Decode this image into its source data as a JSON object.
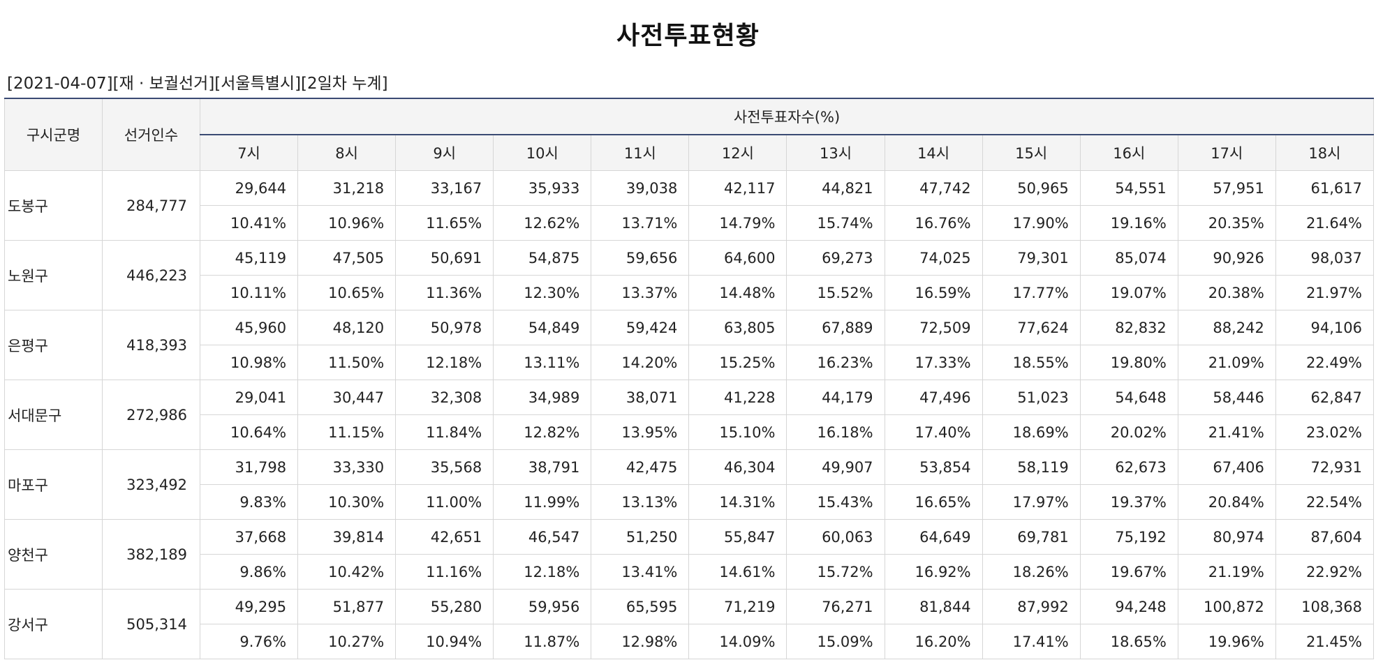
{
  "title": "사전투표현황",
  "subtitle": "[2021-04-07][재 · 보궐선거][서울특별시][2일차 누계]",
  "headers": {
    "district": "구시군명",
    "electors": "선거인수",
    "group": "사전투표자수(%)",
    "hours": [
      "7시",
      "8시",
      "9시",
      "10시",
      "11시",
      "12시",
      "13시",
      "14시",
      "15시",
      "16시",
      "17시",
      "18시"
    ]
  },
  "rows": [
    {
      "name": "도봉구",
      "electors": "284,777",
      "counts": [
        "29,644",
        "31,218",
        "33,167",
        "35,933",
        "39,038",
        "42,117",
        "44,821",
        "47,742",
        "50,965",
        "54,551",
        "57,951",
        "61,617"
      ],
      "rates": [
        "10.41%",
        "10.96%",
        "11.65%",
        "12.62%",
        "13.71%",
        "14.79%",
        "15.74%",
        "16.76%",
        "17.90%",
        "19.16%",
        "20.35%",
        "21.64%"
      ]
    },
    {
      "name": "노원구",
      "electors": "446,223",
      "counts": [
        "45,119",
        "47,505",
        "50,691",
        "54,875",
        "59,656",
        "64,600",
        "69,273",
        "74,025",
        "79,301",
        "85,074",
        "90,926",
        "98,037"
      ],
      "rates": [
        "10.11%",
        "10.65%",
        "11.36%",
        "12.30%",
        "13.37%",
        "14.48%",
        "15.52%",
        "16.59%",
        "17.77%",
        "19.07%",
        "20.38%",
        "21.97%"
      ]
    },
    {
      "name": "은평구",
      "electors": "418,393",
      "counts": [
        "45,960",
        "48,120",
        "50,978",
        "54,849",
        "59,424",
        "63,805",
        "67,889",
        "72,509",
        "77,624",
        "82,832",
        "88,242",
        "94,106"
      ],
      "rates": [
        "10.98%",
        "11.50%",
        "12.18%",
        "13.11%",
        "14.20%",
        "15.25%",
        "16.23%",
        "17.33%",
        "18.55%",
        "19.80%",
        "21.09%",
        "22.49%"
      ]
    },
    {
      "name": "서대문구",
      "electors": "272,986",
      "counts": [
        "29,041",
        "30,447",
        "32,308",
        "34,989",
        "38,071",
        "41,228",
        "44,179",
        "47,496",
        "51,023",
        "54,648",
        "58,446",
        "62,847"
      ],
      "rates": [
        "10.64%",
        "11.15%",
        "11.84%",
        "12.82%",
        "13.95%",
        "15.10%",
        "16.18%",
        "17.40%",
        "18.69%",
        "20.02%",
        "21.41%",
        "23.02%"
      ]
    },
    {
      "name": "마포구",
      "electors": "323,492",
      "counts": [
        "31,798",
        "33,330",
        "35,568",
        "38,791",
        "42,475",
        "46,304",
        "49,907",
        "53,854",
        "58,119",
        "62,673",
        "67,406",
        "72,931"
      ],
      "rates": [
        "9.83%",
        "10.30%",
        "11.00%",
        "11.99%",
        "13.13%",
        "14.31%",
        "15.43%",
        "16.65%",
        "17.97%",
        "19.37%",
        "20.84%",
        "22.54%"
      ]
    },
    {
      "name": "양천구",
      "electors": "382,189",
      "counts": [
        "37,668",
        "39,814",
        "42,651",
        "46,547",
        "51,250",
        "55,847",
        "60,063",
        "64,649",
        "69,781",
        "75,192",
        "80,974",
        "87,604"
      ],
      "rates": [
        "9.86%",
        "10.42%",
        "11.16%",
        "12.18%",
        "13.41%",
        "14.61%",
        "15.72%",
        "16.92%",
        "18.26%",
        "19.67%",
        "21.19%",
        "22.92%"
      ]
    },
    {
      "name": "강서구",
      "electors": "505,314",
      "counts": [
        "49,295",
        "51,877",
        "55,280",
        "59,956",
        "65,595",
        "71,219",
        "76,271",
        "81,844",
        "87,992",
        "94,248",
        "100,872",
        "108,368"
      ],
      "rates": [
        "9.76%",
        "10.27%",
        "10.94%",
        "11.87%",
        "12.98%",
        "14.09%",
        "15.09%",
        "16.20%",
        "17.41%",
        "18.65%",
        "19.96%",
        "21.45%"
      ]
    }
  ]
}
